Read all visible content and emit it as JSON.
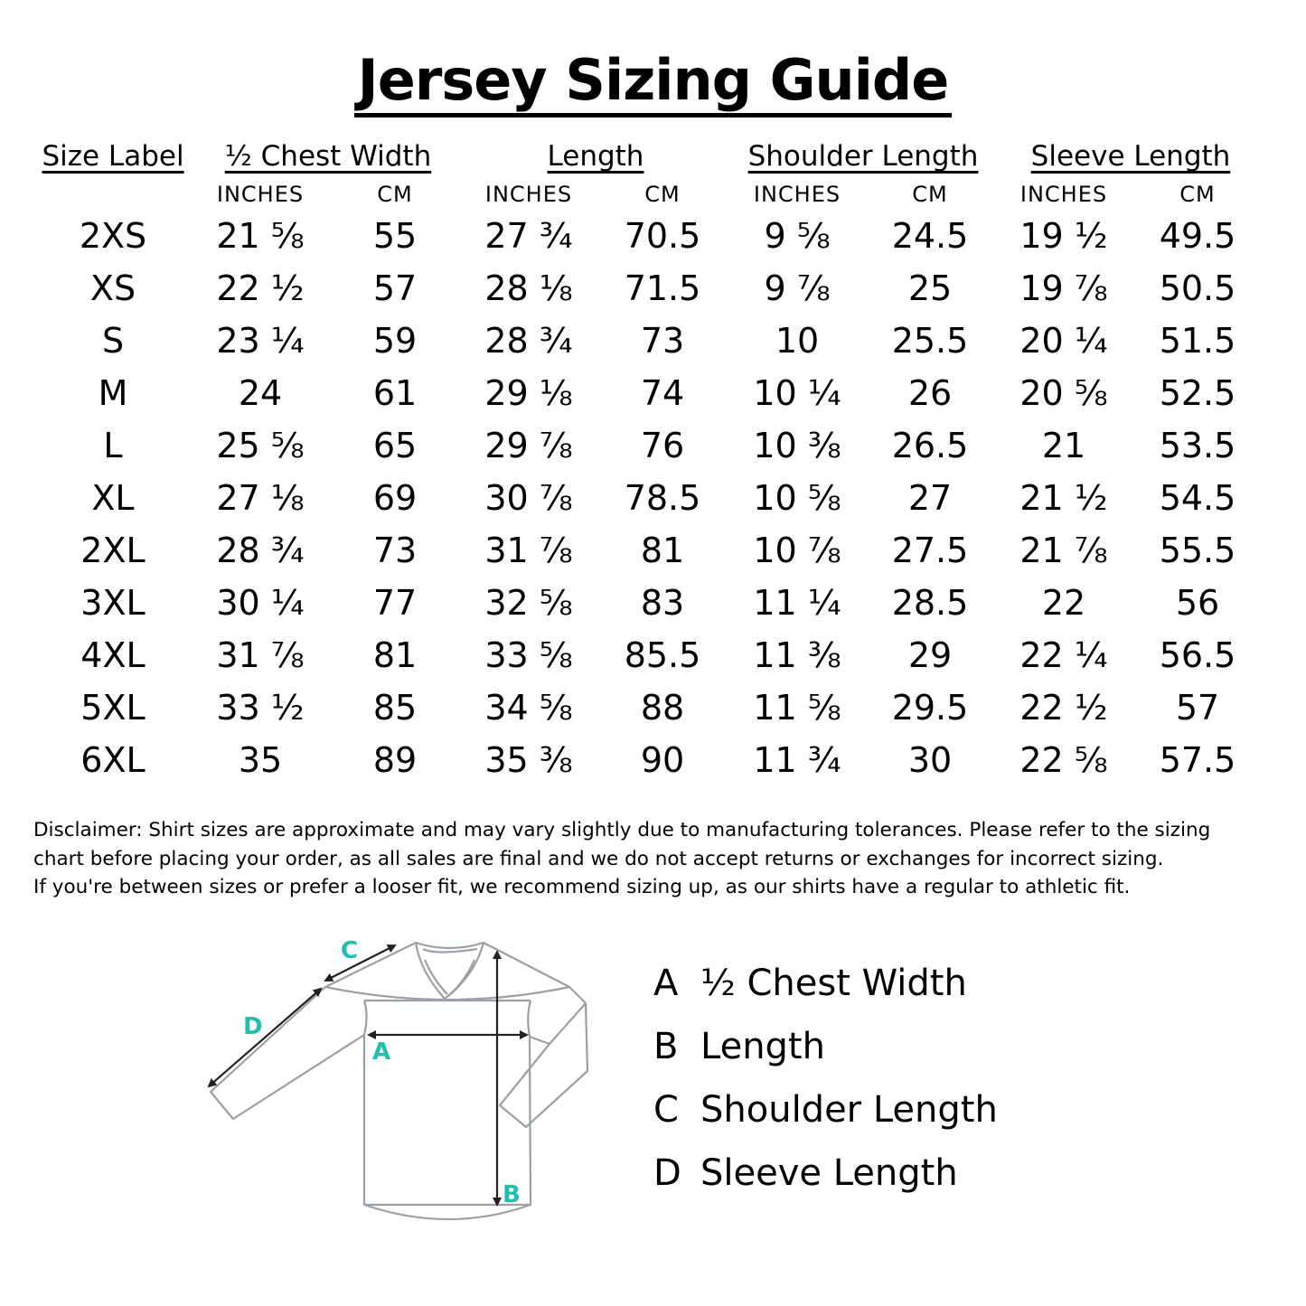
{
  "title": "Jersey Sizing Guide",
  "headers": [
    "Size Label",
    "½ Chest Width",
    "Length",
    "Shoulder Length",
    "Sleeve Length"
  ],
  "units": {
    "inches": "INCHES",
    "cm": "CM"
  },
  "rows": [
    [
      "2XS",
      "21 ⅝",
      "55",
      "27 ¾",
      "70.5",
      "9 ⅝",
      "24.5",
      "19 ½",
      "49.5"
    ],
    [
      "XS",
      "22 ½",
      "57",
      "28 ⅛",
      "71.5",
      "9 ⅞",
      "25",
      "19 ⅞",
      "50.5"
    ],
    [
      "S",
      "23 ¼",
      "59",
      "28 ¾",
      "73",
      "10",
      "25.5",
      "20 ¼",
      "51.5"
    ],
    [
      "M",
      "24",
      "61",
      "29 ⅛",
      "74",
      "10 ¼",
      "26",
      "20 ⅝",
      "52.5"
    ],
    [
      "L",
      "25 ⅝",
      "65",
      "29 ⅞",
      "76",
      "10 ⅜",
      "26.5",
      "21",
      "53.5"
    ],
    [
      "XL",
      "27 ⅛",
      "69",
      "30 ⅞",
      "78.5",
      "10 ⅝",
      "27",
      "21 ½",
      "54.5"
    ],
    [
      "2XL",
      "28 ¾",
      "73",
      "31 ⅞",
      "81",
      "10 ⅞",
      "27.5",
      "21 ⅞",
      "55.5"
    ],
    [
      "3XL",
      "30 ¼",
      "77",
      "32 ⅝",
      "83",
      "11 ¼",
      "28.5",
      "22",
      "56"
    ],
    [
      "4XL",
      "31 ⅞",
      "81",
      "33 ⅝",
      "85.5",
      "11 ⅜",
      "29",
      "22 ¼",
      "56.5"
    ],
    [
      "5XL",
      "33 ½",
      "85",
      "34 ⅝",
      "88",
      "11 ⅝",
      "29.5",
      "22 ½",
      "57"
    ],
    [
      "6XL",
      "35",
      "89",
      "35 ⅜",
      "90",
      "11 ¾",
      "30",
      "22 ⅝",
      "57.5"
    ]
  ],
  "disclaimer": [
    "Disclaimer: Shirt sizes are approximate and may vary slightly due to manufacturing tolerances. Please refer to the sizing",
    "chart before placing your order, as all sales are final and we do not accept returns or exchanges for incorrect sizing.",
    "If you're between sizes or prefer a looser fit, we recommend sizing up, as our shirts have a regular to athletic fit."
  ],
  "diagram": {
    "labels": [
      "A",
      "B",
      "C",
      "D"
    ],
    "label_color": "#1fbfb0",
    "outline_color": "#9aa0a3"
  },
  "legend": [
    {
      "key": "A",
      "label": "½ Chest Width"
    },
    {
      "key": "B",
      "label": "Length"
    },
    {
      "key": "C",
      "label": "Shoulder Length"
    },
    {
      "key": "D",
      "label": "Sleeve Length"
    }
  ]
}
